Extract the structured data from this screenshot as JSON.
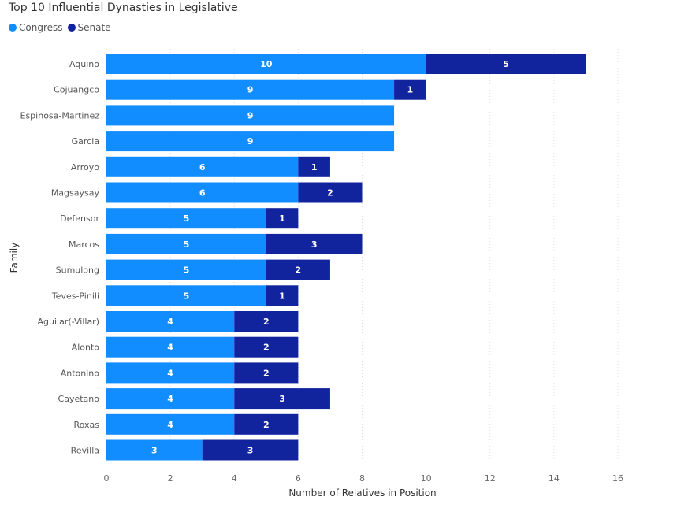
{
  "chart_data": {
    "type": "bar",
    "orientation": "horizontal",
    "stacked": true,
    "title": "Top 10 Influential Dynasties in Legislative",
    "xlabel": "Number of Relatives in Position",
    "ylabel": "Family",
    "xlim": [
      0,
      16
    ],
    "xticks": [
      0,
      2,
      4,
      6,
      8,
      10,
      12,
      14,
      16
    ],
    "grid": true,
    "legend_position": "top-left",
    "categories": [
      "Aquino",
      "Cojuangco",
      "Espinosa-Martinez",
      "Garcia",
      "Arroyo",
      "Magsaysay",
      "Defensor",
      "Marcos",
      "Sumulong",
      "Teves-Pinili",
      "Aguilar(-Villar)",
      "Alonto",
      "Antonino",
      "Cayetano",
      "Roxas",
      "Revilla"
    ],
    "series": [
      {
        "name": "Congress",
        "color": "#118DFF",
        "values": [
          10,
          9,
          9,
          9,
          6,
          6,
          5,
          5,
          5,
          5,
          4,
          4,
          4,
          4,
          4,
          3
        ]
      },
      {
        "name": "Senate",
        "color": "#12239E",
        "values": [
          5,
          1,
          0,
          0,
          1,
          2,
          1,
          3,
          2,
          1,
          2,
          2,
          2,
          3,
          2,
          3
        ]
      }
    ]
  }
}
